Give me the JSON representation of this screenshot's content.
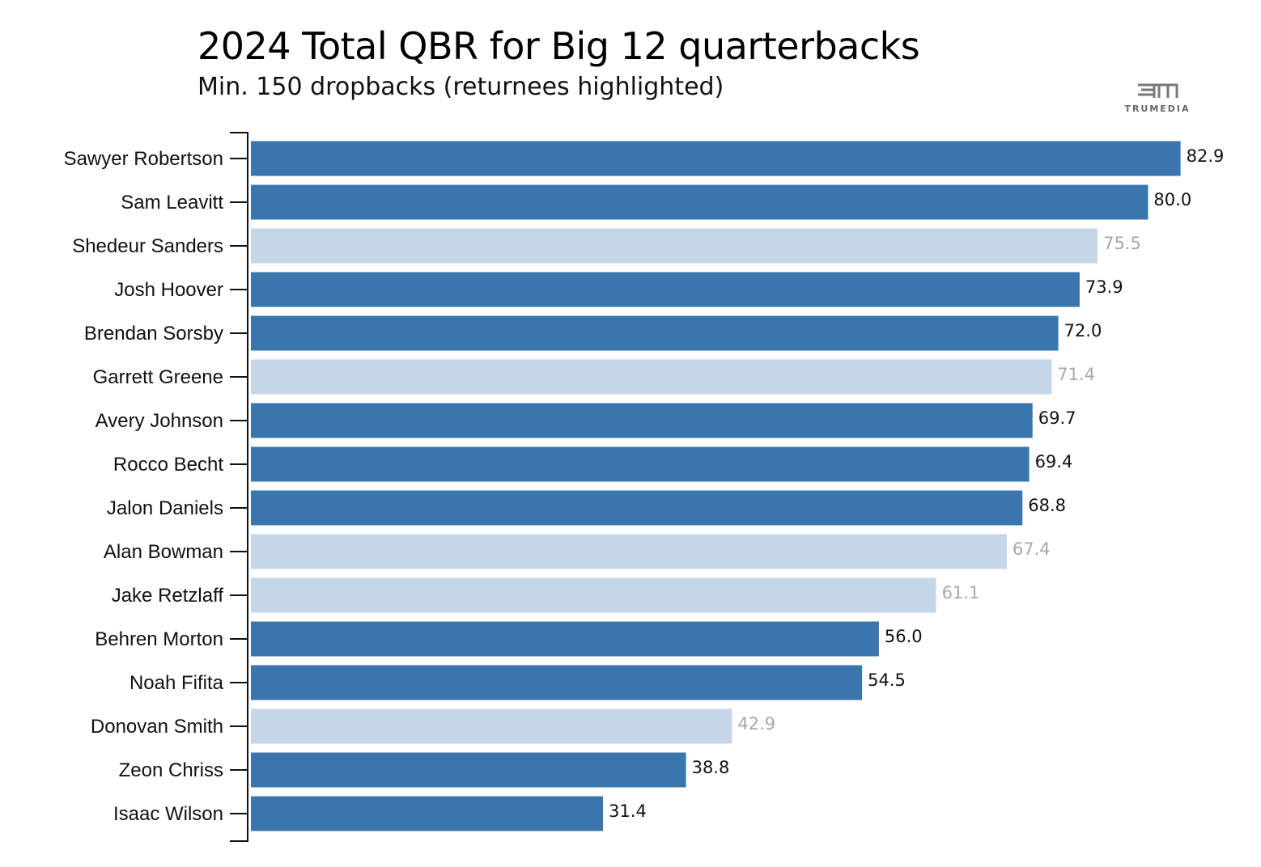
{
  "header": {
    "title": "2024 Total QBR for Big 12 quarterbacks",
    "subtitle": "Min. 150 dropbacks (returnees highlighted)",
    "logo_text": "TRUMEDIA"
  },
  "colors": {
    "returnee_bar": "#3a75ae",
    "other_bar": "#c5d6e8",
    "returnee_label": "#111111",
    "other_label": "#a8a8a8",
    "axis": "#111111"
  },
  "chart_data": {
    "type": "bar",
    "orientation": "horizontal",
    "categories": [
      "Sawyer Robertson",
      "Sam Leavitt",
      "Shedeur Sanders",
      "Josh Hoover",
      "Brendan Sorsby",
      "Garrett Greene",
      "Avery Johnson",
      "Rocco Becht",
      "Jalon Daniels",
      "Alan Bowman",
      "Jake Retzlaff",
      "Behren Morton",
      "Noah Fifita",
      "Donovan Smith",
      "Zeon Chriss",
      "Isaac Wilson"
    ],
    "values": [
      82.9,
      80.0,
      75.5,
      73.9,
      72.0,
      71.4,
      69.7,
      69.4,
      68.8,
      67.4,
      61.1,
      56.0,
      54.5,
      42.9,
      38.8,
      31.4
    ],
    "value_labels": [
      "82.9",
      "80.0",
      "75.5",
      "73.9",
      "72.0",
      "71.4",
      "69.7",
      "69.4",
      "68.8",
      "67.4",
      "61.1",
      "56.0",
      "54.5",
      "42.9",
      "38.8",
      "31.4"
    ],
    "returnee": [
      true,
      true,
      false,
      true,
      true,
      false,
      true,
      true,
      true,
      false,
      false,
      true,
      true,
      false,
      true,
      true
    ],
    "xlim": [
      0,
      83
    ],
    "grid": false,
    "title": "2024 Total QBR for Big 12 quarterbacks",
    "subtitle": "Min. 150 dropbacks (returnees highlighted)"
  }
}
